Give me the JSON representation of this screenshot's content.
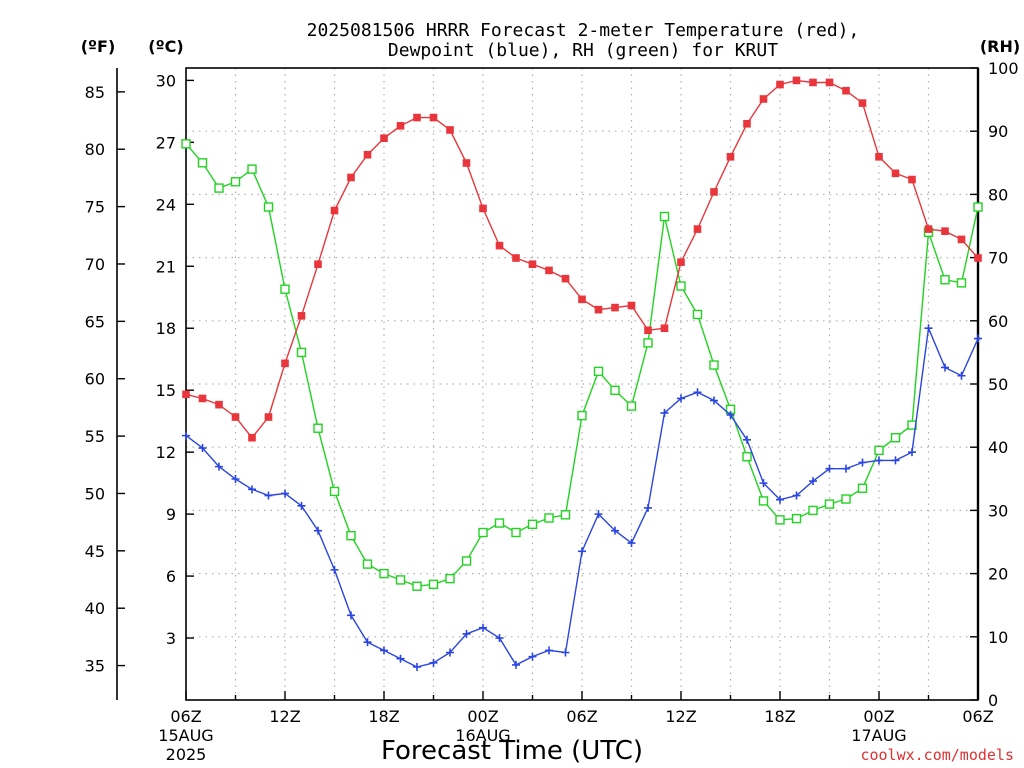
{
  "chart_data": {
    "type": "line",
    "title_line1": "2025081506 HRRR Forecast 2-meter Temperature (red),",
    "title_line2": "Dewpoint (blue), RH (green) for KRUT",
    "xlabel": "Forecast Time (UTC)",
    "credit": "coolwx.com/models",
    "unit_f": "(ºF)",
    "unit_c": "(ºC)",
    "unit_rh": "(RH)",
    "x_hours_range": [
      0,
      48
    ],
    "x_ticks": [
      {
        "hour": 0,
        "label": "06Z",
        "sub1": "15AUG",
        "sub2": "2025"
      },
      {
        "hour": 6,
        "label": "12Z",
        "sub1": "",
        "sub2": ""
      },
      {
        "hour": 12,
        "label": "18Z",
        "sub1": "",
        "sub2": ""
      },
      {
        "hour": 18,
        "label": "00Z",
        "sub1": "16AUG",
        "sub2": ""
      },
      {
        "hour": 24,
        "label": "06Z",
        "sub1": "",
        "sub2": ""
      },
      {
        "hour": 30,
        "label": "12Z",
        "sub1": "",
        "sub2": ""
      },
      {
        "hour": 36,
        "label": "18Z",
        "sub1": "",
        "sub2": ""
      },
      {
        "hour": 42,
        "label": "00Z",
        "sub1": "17AUG",
        "sub2": ""
      },
      {
        "hour": 48,
        "label": "06Z",
        "sub1": "",
        "sub2": ""
      }
    ],
    "y_celsius_range": [
      0,
      30.6
    ],
    "y_celsius_ticks": [
      3,
      6,
      9,
      12,
      15,
      18,
      21,
      24,
      27,
      30
    ],
    "y_fahrenheit_ticks": [
      35,
      40,
      45,
      50,
      55,
      60,
      65,
      70,
      75,
      80,
      85
    ],
    "y_rh_range": [
      0,
      100
    ],
    "y_rh_ticks": [
      0,
      10,
      20,
      30,
      40,
      50,
      60,
      70,
      80,
      90,
      100
    ],
    "colors": {
      "temperature": "#e8363c",
      "dewpoint": "#2b45e0",
      "rh": "#22d322",
      "grid": "#b0b0b0"
    },
    "series": [
      {
        "name": "Temperature",
        "units": "C",
        "values": [
          14.8,
          14.6,
          14.3,
          13.7,
          12.7,
          13.7,
          16.3,
          18.6,
          21.1,
          23.7,
          25.3,
          26.4,
          27.2,
          27.8,
          28.2,
          28.2,
          27.6,
          26.0,
          23.8,
          22.0,
          21.4,
          21.1,
          20.8,
          20.4,
          19.4,
          18.9,
          19.0,
          19.1,
          17.9,
          18.0,
          21.2,
          22.8,
          24.6,
          26.3,
          27.9,
          29.1,
          29.8,
          30.0,
          29.9,
          29.9,
          29.5,
          28.9,
          26.3,
          25.5,
          25.2,
          22.8,
          22.7,
          22.3,
          21.4
        ]
      },
      {
        "name": "Dewpoint",
        "units": "C",
        "values": [
          12.8,
          12.2,
          11.3,
          10.7,
          10.2,
          9.9,
          10.0,
          9.4,
          8.2,
          6.3,
          4.1,
          2.8,
          2.4,
          2.0,
          1.6,
          1.8,
          2.3,
          3.2,
          3.5,
          3.0,
          1.7,
          2.1,
          2.4,
          2.3,
          7.2,
          9.0,
          8.2,
          7.6,
          9.3,
          13.9,
          14.6,
          14.9,
          14.5,
          13.8,
          12.6,
          10.5,
          9.7,
          9.9,
          10.6,
          11.2,
          11.2,
          11.5,
          11.6,
          11.6,
          12.0,
          18.0,
          16.1,
          15.7,
          17.5
        ]
      },
      {
        "name": "RH",
        "units": "%",
        "values": [
          88,
          85,
          81,
          82,
          84,
          78,
          65,
          55,
          43,
          33,
          26,
          21.5,
          20,
          19,
          18,
          18.3,
          19.2,
          22,
          26.5,
          28,
          26.5,
          27.8,
          28.8,
          29.3,
          45,
          52,
          49,
          46.5,
          56.5,
          76.5,
          65.5,
          61,
          53,
          46,
          38.5,
          31.5,
          28.5,
          28.7,
          30,
          31,
          31.8,
          33.5,
          39.5,
          41.5,
          43.5,
          74,
          66.5,
          66,
          78
        ]
      }
    ]
  }
}
